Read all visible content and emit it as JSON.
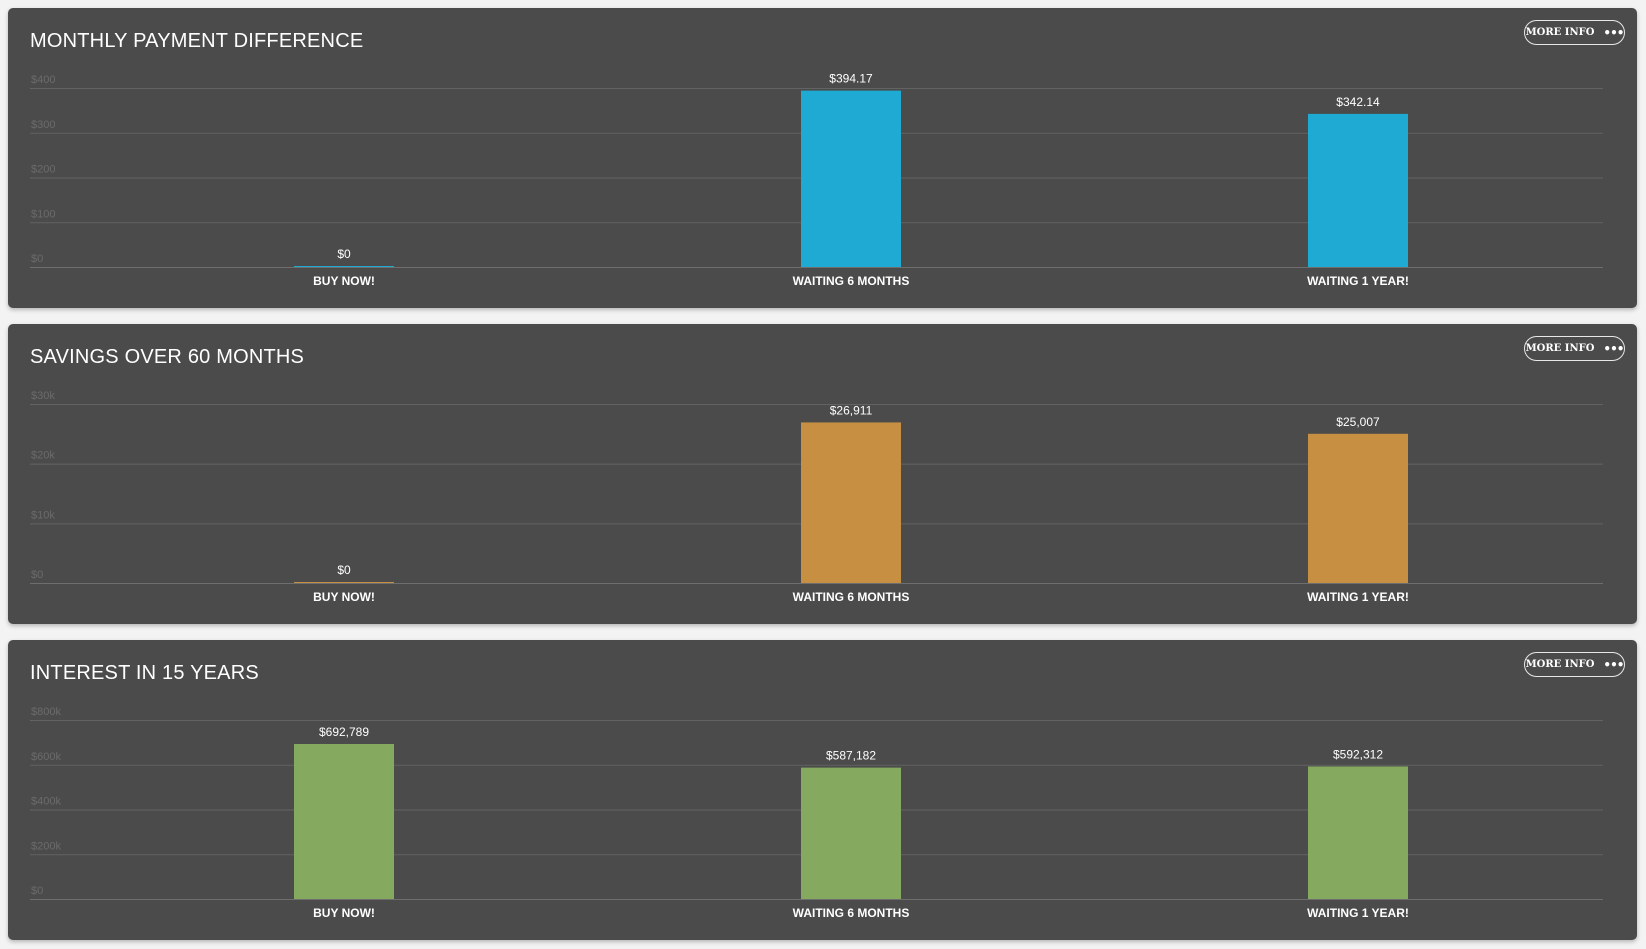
{
  "colors": {
    "panel_bg": "#4b4b4b",
    "blue": "#1eaad2",
    "orange": "#c68f41",
    "green": "#85aa5f"
  },
  "panels": [
    {
      "title": "MONTHLY PAYMENT DIFFERENCE",
      "more_info_label": "MORE INFO",
      "more_info_icon": "dots-horizontal-icon",
      "color": "#1eaad2"
    },
    {
      "title": "SAVINGS OVER 60 MONTHS",
      "more_info_label": "MORE INFO",
      "more_info_icon": "dots-horizontal-icon",
      "color": "#c68f41"
    },
    {
      "title": "INTEREST IN 15 YEARS",
      "more_info_label": "MORE INFO",
      "more_info_icon": "dots-horizontal-icon",
      "color": "#85aa5f"
    }
  ],
  "chart_data": [
    {
      "type": "bar",
      "title": "MONTHLY PAYMENT DIFFERENCE",
      "categories": [
        "BUY NOW!",
        "WAITING 6 MONTHS",
        "WAITING 1 YEAR!"
      ],
      "values": [
        0,
        394.17,
        342.14
      ],
      "data_labels": [
        "$0",
        "$394.17",
        "$342.14"
      ],
      "y_ticks": [
        0,
        100,
        200,
        300,
        400
      ],
      "y_tick_labels": [
        "$0",
        "$100",
        "$200",
        "$300",
        "$400"
      ],
      "ylim": [
        0,
        400
      ],
      "grid": true,
      "legend": "none",
      "color": "#1eaad2"
    },
    {
      "type": "bar",
      "title": "SAVINGS OVER 60 MONTHS",
      "categories": [
        "BUY NOW!",
        "WAITING 6 MONTHS",
        "WAITING 1 YEAR!"
      ],
      "values": [
        0,
        26911,
        25007
      ],
      "data_labels": [
        "$0",
        "$26,911",
        "$25,007"
      ],
      "y_ticks": [
        0,
        10000,
        20000,
        30000
      ],
      "y_tick_labels": [
        "$0",
        "$10k",
        "$20k",
        "$30k"
      ],
      "ylim": [
        0,
        30000
      ],
      "grid": true,
      "legend": "none",
      "color": "#c68f41"
    },
    {
      "type": "bar",
      "title": "INTEREST IN 15 YEARS",
      "categories": [
        "BUY NOW!",
        "WAITING 6 MONTHS",
        "WAITING 1 YEAR!"
      ],
      "values": [
        692789,
        587182,
        592312
      ],
      "data_labels": [
        "$692,789",
        "$587,182",
        "$592,312"
      ],
      "y_ticks": [
        0,
        200000,
        400000,
        600000,
        800000
      ],
      "y_tick_labels": [
        "$0",
        "$200k",
        "$400k",
        "$600k",
        "$800k"
      ],
      "ylim": [
        0,
        800000
      ],
      "grid": true,
      "legend": "none",
      "color": "#85aa5f"
    }
  ]
}
